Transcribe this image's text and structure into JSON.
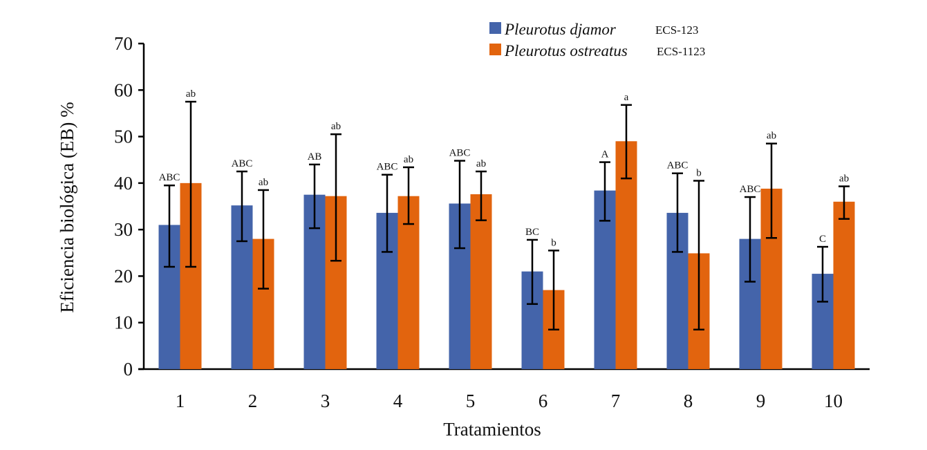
{
  "chart_data": {
    "type": "bar",
    "title": "",
    "xlabel": "Tratamientos",
    "ylabel": "Eficiencia biológica (EB) %",
    "ylim": [
      0,
      70
    ],
    "yticks": [
      0,
      10,
      20,
      30,
      40,
      50,
      60,
      70
    ],
    "grid": false,
    "legend_position": "top-right",
    "categories": [
      "1",
      "2",
      "3",
      "4",
      "5",
      "6",
      "7",
      "8",
      "9",
      "10"
    ],
    "series": [
      {
        "name": "Pleurotus djamor",
        "strain": "ECS-123",
        "color": "#4464AA",
        "values": [
          31.0,
          35.2,
          37.5,
          33.6,
          35.6,
          21.0,
          38.4,
          33.6,
          28.0,
          20.5
        ],
        "error_low": [
          22.0,
          27.5,
          30.3,
          25.2,
          26.0,
          14.0,
          31.9,
          25.2,
          18.8,
          14.5
        ],
        "error_high": [
          39.5,
          42.5,
          44.0,
          41.8,
          44.8,
          27.8,
          44.5,
          42.1,
          37.0,
          26.3
        ],
        "significance": [
          "ABC",
          "ABC",
          "AB",
          "ABC",
          "ABC",
          "BC",
          "A",
          "ABC",
          "ABC",
          "C"
        ]
      },
      {
        "name": "Pleurotus ostreatus",
        "strain": "ECS-1123",
        "color": "#E2640E",
        "values": [
          40.0,
          28.0,
          37.2,
          37.2,
          37.6,
          17.0,
          49.0,
          24.9,
          38.8,
          36.0
        ],
        "error_low": [
          22.0,
          17.3,
          23.3,
          31.2,
          32.0,
          8.5,
          41.0,
          8.5,
          28.2,
          32.3
        ],
        "error_high": [
          57.5,
          38.5,
          50.5,
          43.4,
          42.5,
          25.5,
          56.8,
          40.5,
          48.5,
          39.3
        ],
        "significance": [
          "ab",
          "ab",
          "ab",
          "ab",
          "ab",
          "b",
          "a",
          "b",
          "ab",
          "ab"
        ]
      }
    ]
  }
}
